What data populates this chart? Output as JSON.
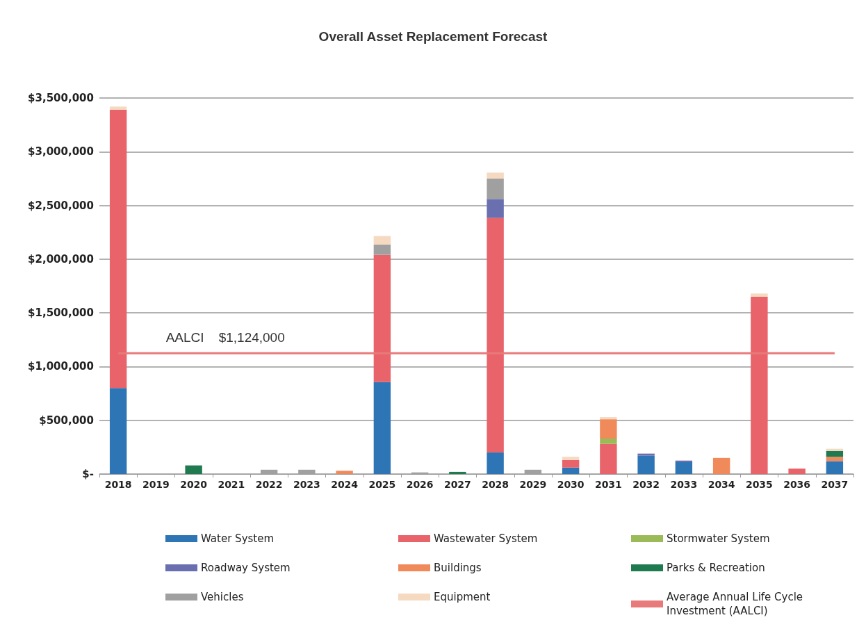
{
  "chart_data": {
    "type": "bar",
    "title": "Overall Asset Replacement Forecast",
    "stacked": true,
    "categories": [
      "2018",
      "2019",
      "2020",
      "2021",
      "2022",
      "2023",
      "2024",
      "2025",
      "2026",
      "2027",
      "2028",
      "2029",
      "2030",
      "2031",
      "2032",
      "2033",
      "2034",
      "2035",
      "2036",
      "2037"
    ],
    "series": [
      {
        "name": "Water System",
        "color": "#2e75b6",
        "values": [
          800000,
          null,
          null,
          null,
          null,
          null,
          null,
          855000,
          null,
          null,
          200000,
          null,
          60000,
          null,
          170000,
          110000,
          null,
          null,
          null,
          120000
        ]
      },
      {
        "name": "Wastewater System",
        "color": "#e8636a",
        "values": [
          2590000,
          null,
          null,
          null,
          null,
          null,
          null,
          1185000,
          null,
          null,
          2185000,
          null,
          70000,
          280000,
          null,
          null,
          null,
          1650000,
          50000,
          null
        ]
      },
      {
        "name": "Stormwater System",
        "color": "#9bbb59",
        "values": [
          null,
          null,
          null,
          null,
          null,
          null,
          null,
          null,
          null,
          null,
          null,
          null,
          null,
          50000,
          null,
          null,
          null,
          null,
          null,
          null
        ]
      },
      {
        "name": "Roadway System",
        "color": "#6a6fb0",
        "values": [
          null,
          null,
          null,
          null,
          null,
          null,
          null,
          null,
          null,
          null,
          175000,
          null,
          null,
          null,
          20000,
          15000,
          null,
          null,
          null,
          null
        ]
      },
      {
        "name": "Buildings",
        "color": "#f08a5a",
        "values": [
          null,
          null,
          null,
          null,
          null,
          null,
          30000,
          null,
          null,
          null,
          null,
          null,
          null,
          180000,
          null,
          null,
          150000,
          null,
          null,
          40000
        ]
      },
      {
        "name": "Parks & Recreation",
        "color": "#1f7a4f",
        "values": [
          null,
          null,
          80000,
          null,
          null,
          null,
          null,
          null,
          null,
          20000,
          null,
          null,
          null,
          null,
          null,
          null,
          null,
          null,
          null,
          55000
        ]
      },
      {
        "name": "Vehicles",
        "color": "#a0a0a0",
        "values": [
          null,
          null,
          null,
          null,
          40000,
          40000,
          null,
          95000,
          15000,
          null,
          190000,
          40000,
          null,
          null,
          null,
          null,
          null,
          null,
          null,
          null
        ]
      },
      {
        "name": "Equipment",
        "color": "#f5d9c0",
        "values": [
          30000,
          null,
          null,
          null,
          null,
          null,
          null,
          80000,
          null,
          null,
          55000,
          null,
          30000,
          20000,
          null,
          null,
          null,
          30000,
          null,
          20000
        ]
      },
      {
        "name": "Average Annual Life Cycle Investment (AALCI)",
        "type": "line",
        "color": "#e87a7a",
        "values": [
          1124000,
          1124000,
          1124000,
          1124000,
          1124000,
          1124000,
          1124000,
          1124000,
          1124000,
          1124000,
          1124000,
          1124000,
          1124000,
          1124000,
          1124000,
          1124000,
          1124000,
          1124000,
          1124000,
          1124000
        ]
      }
    ],
    "annotations": [
      {
        "text": "AALCI    $1,124,000",
        "x": "2020",
        "y": 1124000
      }
    ],
    "ylim": [
      0,
      3500000
    ],
    "yticks": [
      {
        "value": 0,
        "label": "$-"
      },
      {
        "value": 500000,
        "label": "$500,000"
      },
      {
        "value": 1000000,
        "label": "$1,000,000"
      },
      {
        "value": 1500000,
        "label": "$1,500,000"
      },
      {
        "value": 2000000,
        "label": "$2,000,000"
      },
      {
        "value": 2500000,
        "label": "$2,500,000"
      },
      {
        "value": 3000000,
        "label": "$3,000,000"
      },
      {
        "value": 3500000,
        "label": "$3,500,000"
      }
    ],
    "grid": "y",
    "legend": "bottom",
    "marker": "none"
  }
}
